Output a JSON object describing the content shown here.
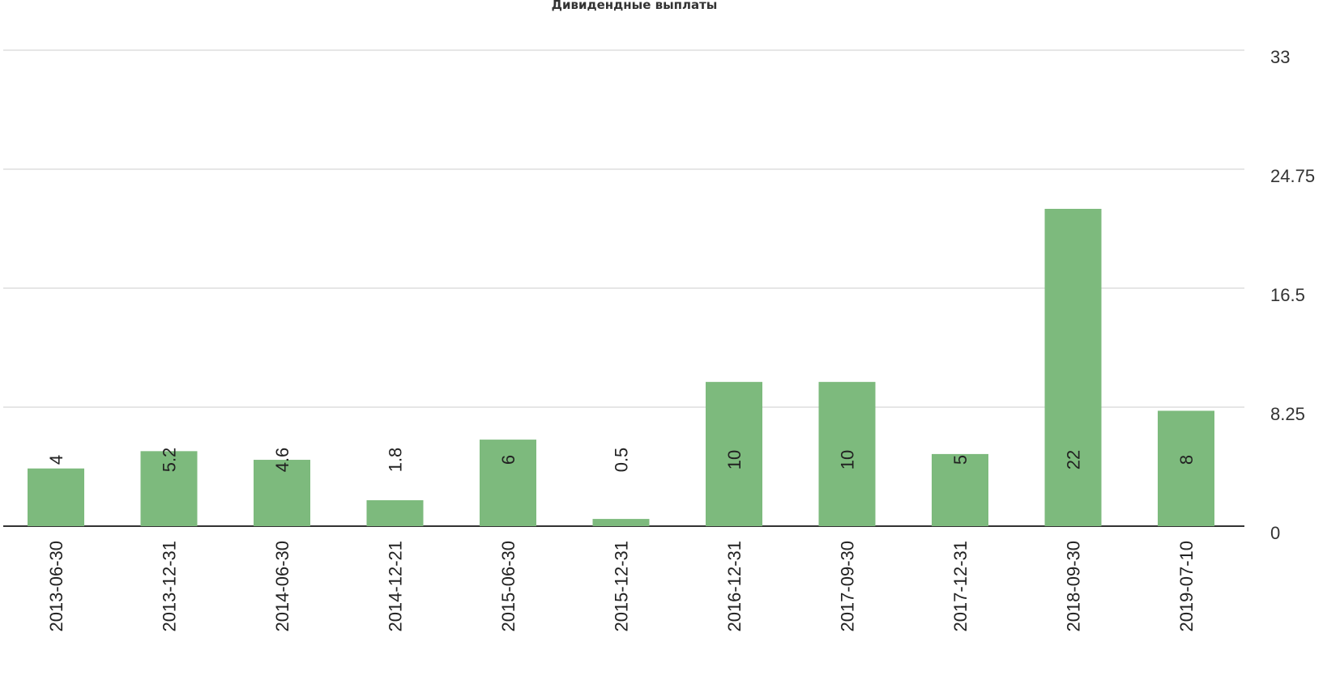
{
  "chart_data": {
    "type": "bar",
    "title": "Дивидендные выплаты",
    "categories": [
      "2013-06-30",
      "2013-12-31",
      "2014-06-30",
      "2014-12-21",
      "2015-06-30",
      "2015-12-31",
      "2016-12-31",
      "2017-09-30",
      "2017-12-31",
      "2018-09-30",
      "2019-07-10"
    ],
    "values": [
      4,
      5.2,
      4.6,
      1.8,
      6,
      0.5,
      10,
      10,
      5,
      22,
      8
    ],
    "data_labels": [
      "4",
      "5.2",
      "4.6",
      "1.8",
      "6",
      "0.5",
      "10",
      "10",
      "5",
      "22",
      "8"
    ],
    "ylim": [
      0,
      33
    ],
    "yticks": [
      "0",
      "8.25",
      "16.5",
      "24.75",
      "33"
    ],
    "xlabel": "",
    "ylabel": "",
    "grid": true,
    "legend": "none",
    "bar_color": "#7dba7d",
    "axis_position": "right"
  }
}
